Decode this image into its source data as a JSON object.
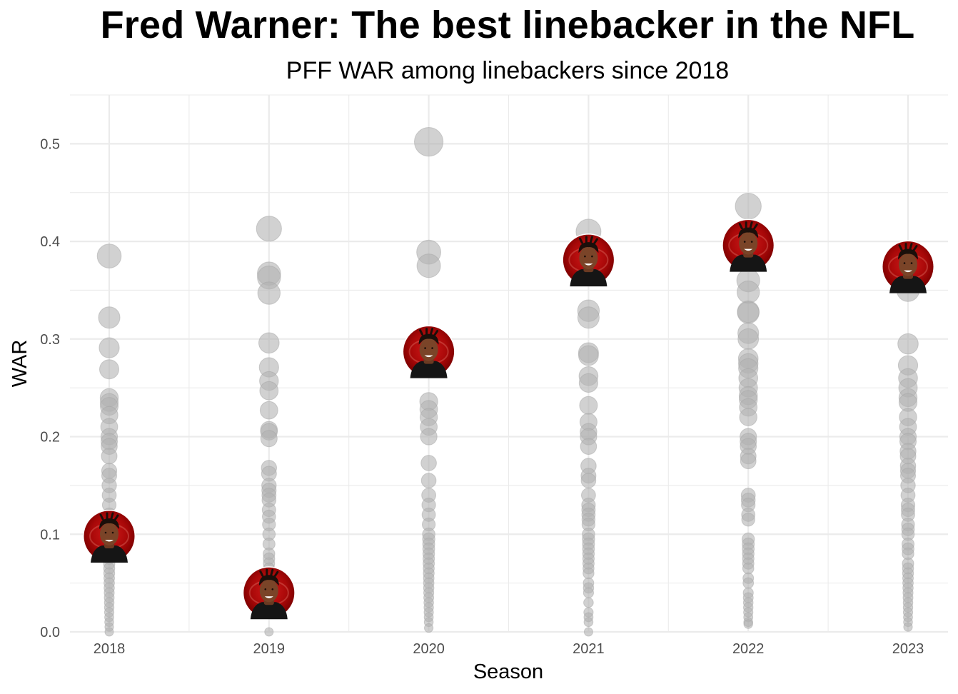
{
  "chart_data": {
    "type": "scatter",
    "title": "Fred Warner: The best linebacker in the NFL",
    "subtitle": "PFF WAR among linebackers since 2018",
    "xlabel": "Season",
    "ylabel": "WAR",
    "categories": [
      "2018",
      "2019",
      "2020",
      "2021",
      "2022",
      "2023"
    ],
    "y_ticks": [
      "0.0",
      "0.1",
      "0.2",
      "0.3",
      "0.4",
      "0.5"
    ],
    "ylim": [
      0,
      0.55
    ],
    "grid": true,
    "colors": {
      "other_players": "#b3b3b3",
      "highlight": "#aa0000",
      "grid": "#ebebeb"
    },
    "highlight_icon": "fred-warner-headshot-icon",
    "series": [
      {
        "values": [
          [
            0.385,
            0.322,
            0.291,
            0.269,
            0.24,
            0.235,
            0.231,
            0.222,
            0.21,
            0.2,
            0.195,
            0.19,
            0.18,
            0.165,
            0.16,
            0.15,
            0.14,
            0.13,
            0.12,
            0.11,
            0.09,
            0.085,
            0.08,
            0.075,
            0.07,
            0.065,
            0.06,
            0.055,
            0.05,
            0.045,
            0.04,
            0.035,
            0.03,
            0.025,
            0.02,
            0.015,
            0.01,
            0.005,
            0.0
          ],
          [
            0.413,
            0.367,
            0.363,
            0.347,
            0.296,
            0.271,
            0.257,
            0.247,
            0.227,
            0.207,
            0.205,
            0.198,
            0.168,
            0.162,
            0.15,
            0.145,
            0.14,
            0.135,
            0.125,
            0.118,
            0.11,
            0.1,
            0.09,
            0.08,
            0.075,
            0.07,
            0.065,
            0.06,
            0.05,
            0.045,
            0.035,
            0.03,
            0.025,
            0.02,
            0.0
          ],
          [
            0.502,
            0.389,
            0.375,
            0.236,
            0.228,
            0.22,
            0.21,
            0.2,
            0.173,
            0.155,
            0.14,
            0.13,
            0.12,
            0.11,
            0.1,
            0.095,
            0.09,
            0.085,
            0.08,
            0.075,
            0.07,
            0.065,
            0.06,
            0.055,
            0.05,
            0.045,
            0.04,
            0.035,
            0.03,
            0.025,
            0.02,
            0.015,
            0.01,
            0.004
          ],
          [
            0.41,
            0.329,
            0.322,
            0.286,
            0.283,
            0.262,
            0.255,
            0.232,
            0.215,
            0.205,
            0.2,
            0.19,
            0.17,
            0.16,
            0.155,
            0.14,
            0.13,
            0.125,
            0.12,
            0.115,
            0.11,
            0.1,
            0.095,
            0.09,
            0.085,
            0.08,
            0.075,
            0.07,
            0.065,
            0.06,
            0.05,
            0.045,
            0.04,
            0.03,
            0.02,
            0.015,
            0.01,
            0.0
          ],
          [
            0.436,
            0.36,
            0.348,
            0.328,
            0.327,
            0.306,
            0.3,
            0.28,
            0.275,
            0.27,
            0.26,
            0.25,
            0.242,
            0.238,
            0.23,
            0.22,
            0.2,
            0.195,
            0.19,
            0.18,
            0.175,
            0.14,
            0.135,
            0.13,
            0.12,
            0.115,
            0.095,
            0.09,
            0.085,
            0.08,
            0.075,
            0.07,
            0.065,
            0.055,
            0.05,
            0.04,
            0.035,
            0.03,
            0.025,
            0.02,
            0.015,
            0.01,
            0.008
          ],
          [
            0.35,
            0.295,
            0.273,
            0.26,
            0.25,
            0.24,
            0.235,
            0.22,
            0.21,
            0.2,
            0.195,
            0.185,
            0.18,
            0.17,
            0.165,
            0.16,
            0.15,
            0.14,
            0.13,
            0.125,
            0.12,
            0.11,
            0.105,
            0.1,
            0.09,
            0.085,
            0.08,
            0.07,
            0.065,
            0.06,
            0.055,
            0.05,
            0.045,
            0.04,
            0.035,
            0.03,
            0.025,
            0.02,
            0.015,
            0.01,
            0.005
          ]
        ]
      },
      {
        "values": [
          0.098,
          0.04,
          0.287,
          0.381,
          0.396,
          0.374
        ]
      }
    ]
  }
}
